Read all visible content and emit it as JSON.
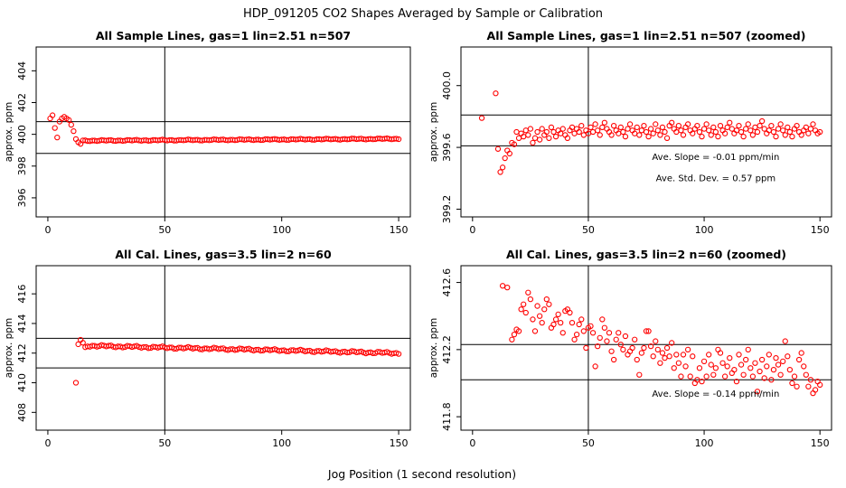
{
  "figure": {
    "title": "HDP_091205  CO2 Shapes Averaged by Sample or Calibration",
    "xlabel": "Jog Position (1 second resolution)"
  },
  "chart_data": [
    {
      "type": "scatter",
      "title": "All Sample Lines, gas=1 lin=2.51 n=507",
      "ylabel": "approx. ppm",
      "xlim": [
        -5,
        155
      ],
      "ylim": [
        394.8,
        405.5
      ],
      "xticks": [
        0,
        50,
        100,
        150
      ],
      "yticks": [
        396,
        398,
        400,
        402,
        404
      ],
      "hlines": [
        400.8,
        398.8
      ],
      "vline": 50,
      "marker_color": "#ff0000",
      "points": [
        [
          1,
          401.0
        ],
        [
          2,
          401.2
        ],
        [
          3,
          400.4
        ],
        [
          4,
          399.8
        ],
        [
          5,
          400.8
        ],
        [
          6,
          401.0
        ],
        [
          7,
          401.1
        ],
        [
          8,
          401.0
        ],
        [
          9,
          400.9
        ],
        [
          10,
          400.6
        ],
        [
          11,
          400.2
        ],
        [
          12,
          399.7
        ],
        [
          13,
          399.5
        ],
        [
          14,
          399.4
        ]
      ],
      "series": [
        {
          "x_start": 15,
          "x_end": 150,
          "step": 1,
          "start_value": 399.6,
          "end_value": 399.72,
          "wiggle": 0.04
        }
      ],
      "annotations": []
    },
    {
      "type": "scatter",
      "title": "All Sample Lines, gas=1 lin=2.51 n=507 (zoomed)",
      "ylabel": "approx. ppm",
      "xlim": [
        -5,
        155
      ],
      "ylim": [
        399.15,
        400.25
      ],
      "xticks": [
        0,
        50,
        100,
        150
      ],
      "yticks": [
        399.2,
        399.6,
        400.0
      ],
      "ytick_labels": [
        "399.2",
        "399.6",
        "400.0"
      ],
      "hlines": [
        399.81,
        399.61
      ],
      "vline": 50,
      "marker_color": "#ff0000",
      "points": [
        [
          4,
          399.79
        ],
        [
          10,
          399.95
        ],
        [
          11,
          399.59
        ],
        [
          12,
          399.44
        ],
        [
          13,
          399.47
        ],
        [
          14,
          399.53
        ],
        [
          15,
          399.58
        ],
        [
          16,
          399.56
        ],
        [
          17,
          399.63
        ],
        [
          18,
          399.62
        ],
        [
          19,
          399.7
        ],
        [
          20,
          399.66
        ],
        [
          21,
          399.69
        ],
        [
          22,
          399.67
        ],
        [
          23,
          399.71
        ],
        [
          24,
          399.68
        ],
        [
          25,
          399.72
        ],
        [
          26,
          399.63
        ],
        [
          27,
          399.66
        ],
        [
          28,
          399.7
        ],
        [
          29,
          399.65
        ],
        [
          30,
          399.72
        ],
        [
          31,
          399.68
        ],
        [
          32,
          399.7
        ],
        [
          33,
          399.66
        ],
        [
          34,
          399.73
        ],
        [
          35,
          399.7
        ],
        [
          36,
          399.67
        ],
        [
          37,
          399.71
        ],
        [
          38,
          399.69
        ],
        [
          39,
          399.72
        ],
        [
          40,
          399.68
        ],
        [
          41,
          399.66
        ],
        [
          42,
          399.71
        ],
        [
          43,
          399.73
        ],
        [
          44,
          399.69
        ],
        [
          45,
          399.72
        ],
        [
          46,
          399.7
        ],
        [
          47,
          399.74
        ],
        [
          48,
          399.68
        ],
        [
          49,
          399.71
        ],
        [
          50,
          399.69
        ],
        [
          51,
          399.73
        ],
        [
          52,
          399.7
        ],
        [
          53,
          399.75
        ],
        [
          54,
          399.71
        ],
        [
          55,
          399.68
        ],
        [
          56,
          399.73
        ],
        [
          57,
          399.76
        ],
        [
          58,
          399.72
        ],
        [
          59,
          399.7
        ],
        [
          60,
          399.68
        ],
        [
          61,
          399.74
        ],
        [
          62,
          399.71
        ],
        [
          63,
          399.69
        ],
        [
          64,
          399.73
        ],
        [
          65,
          399.7
        ],
        [
          66,
          399.67
        ],
        [
          67,
          399.72
        ],
        [
          68,
          399.75
        ],
        [
          69,
          399.71
        ],
        [
          70,
          399.69
        ],
        [
          71,
          399.73
        ],
        [
          72,
          399.68
        ],
        [
          73,
          399.71
        ],
        [
          74,
          399.74
        ],
        [
          75,
          399.7
        ],
        [
          76,
          399.67
        ],
        [
          77,
          399.72
        ],
        [
          78,
          399.69
        ],
        [
          79,
          399.75
        ],
        [
          80,
          399.71
        ],
        [
          81,
          399.68
        ],
        [
          82,
          399.73
        ],
        [
          83,
          399.7
        ],
        [
          84,
          399.66
        ],
        [
          85,
          399.74
        ],
        [
          86,
          399.76
        ],
        [
          87,
          399.72
        ],
        [
          88,
          399.7
        ],
        [
          89,
          399.74
        ],
        [
          90,
          399.71
        ],
        [
          91,
          399.68
        ],
        [
          92,
          399.73
        ],
        [
          93,
          399.75
        ],
        [
          94,
          399.71
        ],
        [
          95,
          399.69
        ],
        [
          96,
          399.72
        ],
        [
          97,
          399.74
        ],
        [
          98,
          399.7
        ],
        [
          99,
          399.67
        ],
        [
          100,
          399.72
        ],
        [
          101,
          399.75
        ],
        [
          102,
          399.71
        ],
        [
          103,
          399.68
        ],
        [
          104,
          399.73
        ],
        [
          105,
          399.7
        ],
        [
          106,
          399.67
        ],
        [
          107,
          399.74
        ],
        [
          108,
          399.71
        ],
        [
          109,
          399.69
        ],
        [
          110,
          399.73
        ],
        [
          111,
          399.76
        ],
        [
          112,
          399.72
        ],
        [
          113,
          399.69
        ],
        [
          114,
          399.71
        ],
        [
          115,
          399.74
        ],
        [
          116,
          399.7
        ],
        [
          117,
          399.67
        ],
        [
          118,
          399.72
        ],
        [
          119,
          399.75
        ],
        [
          120,
          399.71
        ],
        [
          121,
          399.68
        ],
        [
          122,
          399.73
        ],
        [
          123,
          399.7
        ],
        [
          124,
          399.74
        ],
        [
          125,
          399.77
        ],
        [
          126,
          399.72
        ],
        [
          127,
          399.69
        ],
        [
          128,
          399.71
        ],
        [
          129,
          399.74
        ],
        [
          130,
          399.7
        ],
        [
          131,
          399.67
        ],
        [
          132,
          399.72
        ],
        [
          133,
          399.75
        ],
        [
          134,
          399.71
        ],
        [
          135,
          399.68
        ],
        [
          136,
          399.73
        ],
        [
          137,
          399.7
        ],
        [
          138,
          399.67
        ],
        [
          139,
          399.72
        ],
        [
          140,
          399.74
        ],
        [
          141,
          399.7
        ],
        [
          142,
          399.68
        ],
        [
          143,
          399.71
        ],
        [
          144,
          399.73
        ],
        [
          145,
          399.69
        ],
        [
          146,
          399.72
        ],
        [
          147,
          399.75
        ],
        [
          148,
          399.71
        ],
        [
          149,
          399.69
        ],
        [
          150,
          399.7
        ]
      ],
      "series": [],
      "annotations": [
        {
          "text": "Ave. Slope =  -0.01  ppm/min",
          "x": 105,
          "y": 399.52
        },
        {
          "text": "Ave. Std. Dev. =  0.57  ppm",
          "x": 105,
          "y": 399.38
        }
      ]
    },
    {
      "type": "scatter",
      "title": "All Cal. Lines, gas=3.5 lin=2 n=60",
      "ylabel": "approx. ppm",
      "xlim": [
        -5,
        155
      ],
      "ylim": [
        406.8,
        417.9
      ],
      "xticks": [
        0,
        50,
        100,
        150
      ],
      "yticks": [
        408,
        410,
        412,
        414,
        416
      ],
      "hlines": [
        413.0,
        411.0
      ],
      "vline": 50,
      "marker_color": "#ff0000",
      "points": [
        [
          12,
          410.0
        ],
        [
          13,
          412.6
        ],
        [
          14,
          412.9
        ],
        [
          15,
          412.7
        ],
        [
          16,
          412.4
        ]
      ],
      "series": [
        {
          "x_start": 17,
          "x_end": 150,
          "step": 1,
          "start_value": 412.5,
          "end_value": 412.0,
          "wiggle": 0.08
        }
      ],
      "annotations": []
    },
    {
      "type": "scatter",
      "title": "All Cal. Lines, gas=3.5 lin=2 n=60 (zoomed)",
      "ylabel": "approx. ppm",
      "xlim": [
        -5,
        155
      ],
      "ylim": [
        411.72,
        412.7
      ],
      "xticks": [
        0,
        50,
        100,
        150
      ],
      "yticks": [
        411.8,
        412.2,
        412.6
      ],
      "ytick_labels": [
        "411.8",
        "412.2",
        "412.6"
      ],
      "hlines": [
        412.23,
        412.02
      ],
      "vline": 50,
      "marker_color": "#ff0000",
      "points": [
        [
          13,
          412.58
        ],
        [
          15,
          412.57
        ],
        [
          17,
          412.26
        ],
        [
          18,
          412.29
        ],
        [
          19,
          412.32
        ],
        [
          20,
          412.31
        ],
        [
          21,
          412.44
        ],
        [
          22,
          412.47
        ],
        [
          23,
          412.42
        ],
        [
          24,
          412.54
        ],
        [
          25,
          412.5
        ],
        [
          26,
          412.38
        ],
        [
          27,
          412.31
        ],
        [
          28,
          412.46
        ],
        [
          29,
          412.4
        ],
        [
          30,
          412.36
        ],
        [
          31,
          412.44
        ],
        [
          32,
          412.5
        ],
        [
          33,
          412.47
        ],
        [
          34,
          412.33
        ],
        [
          35,
          412.35
        ],
        [
          36,
          412.38
        ],
        [
          37,
          412.41
        ],
        [
          38,
          412.36
        ],
        [
          39,
          412.3
        ],
        [
          40,
          412.43
        ],
        [
          41,
          412.44
        ],
        [
          42,
          412.42
        ],
        [
          43,
          412.36
        ],
        [
          44,
          412.26
        ],
        [
          45,
          412.29
        ],
        [
          46,
          412.35
        ],
        [
          47,
          412.38
        ],
        [
          48,
          412.31
        ],
        [
          49,
          412.21
        ],
        [
          50,
          412.33
        ],
        [
          51,
          412.34
        ],
        [
          52,
          412.3
        ],
        [
          53,
          412.1
        ],
        [
          54,
          412.22
        ],
        [
          55,
          412.27
        ],
        [
          56,
          412.38
        ],
        [
          57,
          412.33
        ],
        [
          58,
          412.25
        ],
        [
          59,
          412.3
        ],
        [
          60,
          412.19
        ],
        [
          61,
          412.14
        ],
        [
          62,
          412.26
        ],
        [
          63,
          412.3
        ],
        [
          64,
          412.23
        ],
        [
          65,
          412.2
        ],
        [
          66,
          412.28
        ],
        [
          67,
          412.17
        ],
        [
          68,
          412.19
        ],
        [
          69,
          412.21
        ],
        [
          70,
          412.26
        ],
        [
          71,
          412.14
        ],
        [
          72,
          412.05
        ],
        [
          73,
          412.18
        ],
        [
          74,
          412.21
        ],
        [
          75,
          412.31
        ],
        [
          76,
          412.31
        ],
        [
          77,
          412.22
        ],
        [
          78,
          412.16
        ],
        [
          79,
          412.25
        ],
        [
          80,
          412.2
        ],
        [
          81,
          412.12
        ],
        [
          82,
          412.18
        ],
        [
          83,
          412.15
        ],
        [
          84,
          412.21
        ],
        [
          85,
          412.16
        ],
        [
          86,
          412.24
        ],
        [
          87,
          412.09
        ],
        [
          88,
          412.17
        ],
        [
          89,
          412.12
        ],
        [
          90,
          412.04
        ],
        [
          91,
          412.17
        ],
        [
          92,
          412.1
        ],
        [
          93,
          412.2
        ],
        [
          94,
          412.04
        ],
        [
          95,
          412.16
        ],
        [
          96,
          412.0
        ],
        [
          97,
          412.02
        ],
        [
          98,
          412.09
        ],
        [
          99,
          412.01
        ],
        [
          100,
          412.13
        ],
        [
          101,
          412.04
        ],
        [
          102,
          412.17
        ],
        [
          103,
          412.11
        ],
        [
          104,
          412.05
        ],
        [
          105,
          412.09
        ],
        [
          106,
          412.2
        ],
        [
          107,
          412.18
        ],
        [
          108,
          412.12
        ],
        [
          109,
          412.04
        ],
        [
          110,
          412.1
        ],
        [
          111,
          412.15
        ],
        [
          112,
          412.06
        ],
        [
          113,
          412.08
        ],
        [
          114,
          412.01
        ],
        [
          115,
          412.17
        ],
        [
          116,
          412.11
        ],
        [
          117,
          412.05
        ],
        [
          118,
          412.14
        ],
        [
          119,
          412.2
        ],
        [
          120,
          412.09
        ],
        [
          121,
          412.04
        ],
        [
          122,
          412.12
        ],
        [
          123,
          411.95
        ],
        [
          124,
          412.07
        ],
        [
          125,
          412.14
        ],
        [
          126,
          412.03
        ],
        [
          127,
          412.1
        ],
        [
          128,
          412.17
        ],
        [
          129,
          412.02
        ],
        [
          130,
          412.08
        ],
        [
          131,
          412.15
        ],
        [
          132,
          412.11
        ],
        [
          133,
          412.05
        ],
        [
          134,
          412.13
        ],
        [
          135,
          412.25
        ],
        [
          136,
          412.16
        ],
        [
          137,
          412.08
        ],
        [
          138,
          412.0
        ],
        [
          139,
          412.04
        ],
        [
          140,
          411.98
        ],
        [
          141,
          412.14
        ],
        [
          142,
          412.18
        ],
        [
          143,
          412.1
        ],
        [
          144,
          412.05
        ],
        [
          145,
          411.98
        ],
        [
          146,
          412.02
        ],
        [
          147,
          411.94
        ],
        [
          148,
          411.96
        ],
        [
          149,
          412.01
        ],
        [
          150,
          411.99
        ]
      ],
      "series": [],
      "annotations": [
        {
          "text": "Ave. Slope =  -0.14  ppm/min",
          "x": 105,
          "y": 411.92
        }
      ]
    }
  ]
}
